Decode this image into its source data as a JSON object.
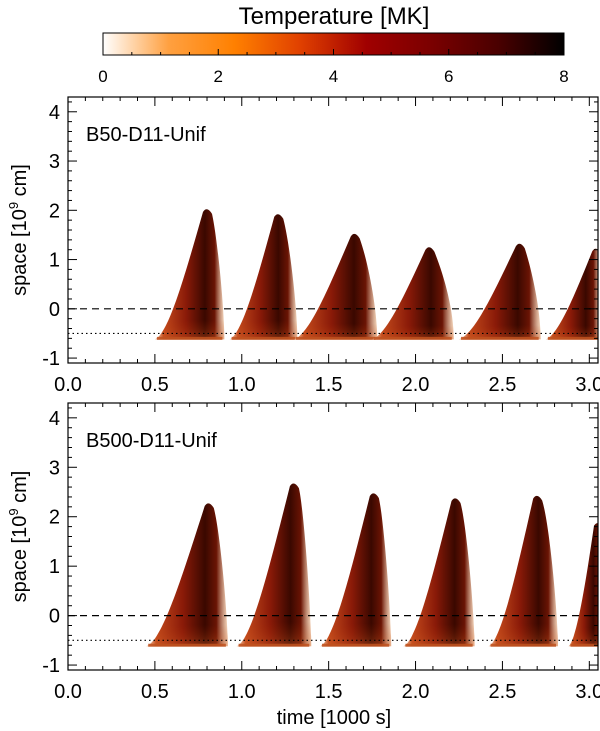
{
  "colorbar": {
    "title": "Temperature [MK]",
    "range": [
      0,
      8
    ],
    "ticks": [
      "0",
      "2",
      "4",
      "6",
      "8"
    ],
    "stops": [
      "#ffffff",
      "#ffa040",
      "#ff8000",
      "#e04000",
      "#a00000",
      "#7a0000",
      "#4a0000",
      "#000000"
    ]
  },
  "chart_data": [
    {
      "type": "heatmap",
      "label": "B50-D11-Unif",
      "xlabel": "",
      "ylabel_prefix": "space [10",
      "ylabel_exp": "9",
      "ylabel_suffix": " cm]",
      "xlim": [
        0.0,
        3.05
      ],
      "ylim": [
        -1.1,
        4.3
      ],
      "xticks": [
        "0.0",
        "0.5",
        "1.0",
        "1.5",
        "2.0",
        "2.5",
        "3.0"
      ],
      "yticks": [
        "-1",
        "0",
        "1",
        "2",
        "3",
        "4"
      ],
      "dashed_y": 0,
      "dotted_y": -0.5,
      "plumes": [
        {
          "start": 0.5,
          "peak_t": 0.8,
          "end": 0.9,
          "peak": 2.05
        },
        {
          "start": 0.93,
          "peak_t": 1.21,
          "end": 1.32,
          "peak": 1.95
        },
        {
          "start": 1.3,
          "peak_t": 1.65,
          "end": 1.78,
          "peak": 1.55
        },
        {
          "start": 1.75,
          "peak_t": 2.08,
          "end": 2.22,
          "peak": 1.28
        },
        {
          "start": 2.25,
          "peak_t": 2.6,
          "end": 2.72,
          "peak": 1.35
        },
        {
          "start": 2.75,
          "peak_t": 3.04,
          "end": 3.06,
          "peak": 1.25
        }
      ]
    },
    {
      "type": "heatmap",
      "label": "B500-D11-Unif",
      "xlabel": "time [1000 s]",
      "ylabel_prefix": "space [10",
      "ylabel_exp": "9",
      "ylabel_suffix": " cm]",
      "xlim": [
        0.0,
        3.05
      ],
      "ylim": [
        -1.1,
        4.3
      ],
      "xticks": [
        "0.0",
        "0.5",
        "1.0",
        "1.5",
        "2.0",
        "2.5",
        "3.0"
      ],
      "yticks": [
        "-1",
        "0",
        "1",
        "2",
        "3",
        "4"
      ],
      "dashed_y": 0,
      "dotted_y": -0.5,
      "plumes": [
        {
          "start": 0.45,
          "peak_t": 0.81,
          "end": 0.92,
          "peak": 2.3
        },
        {
          "start": 0.97,
          "peak_t": 1.3,
          "end": 1.4,
          "peak": 2.7
        },
        {
          "start": 1.45,
          "peak_t": 1.76,
          "end": 1.86,
          "peak": 2.5
        },
        {
          "start": 1.93,
          "peak_t": 2.23,
          "end": 2.34,
          "peak": 2.4
        },
        {
          "start": 2.42,
          "peak_t": 2.7,
          "end": 2.82,
          "peak": 2.45
        },
        {
          "start": 2.88,
          "peak_t": 3.05,
          "end": 3.06,
          "peak": 1.9
        }
      ]
    }
  ]
}
